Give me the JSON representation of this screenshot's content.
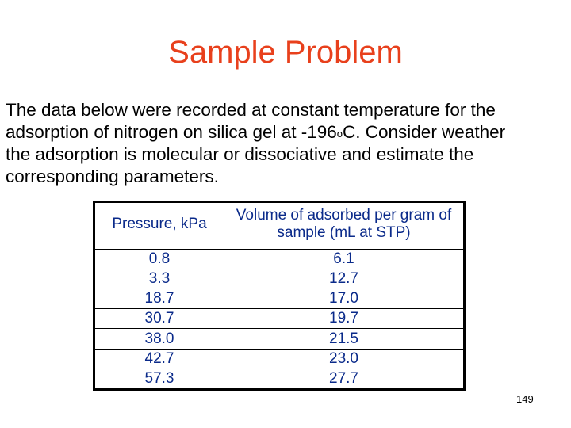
{
  "slide": {
    "title": "Sample Problem",
    "body_lines": [
      "The data below were recorded at constant temperature for the",
      "adsorption of nitrogen on silica gel at -196oC.  Consider weather",
      "the adsorption is molecular or dissociative and estimate the",
      "corresponding parameters."
    ],
    "page_number": "149"
  },
  "table": {
    "headers": [
      "Pressure, kPa",
      "Volume of adsorbed per gram of sample (mL at STP)"
    ],
    "rows": [
      [
        "0.8",
        "6.1"
      ],
      [
        "3.3",
        "12.7"
      ],
      [
        "18.7",
        "17.0"
      ],
      [
        "30.7",
        "19.7"
      ],
      [
        "38.0",
        "21.5"
      ],
      [
        "42.7",
        "23.0"
      ],
      [
        "57.3",
        "27.7"
      ]
    ]
  }
}
